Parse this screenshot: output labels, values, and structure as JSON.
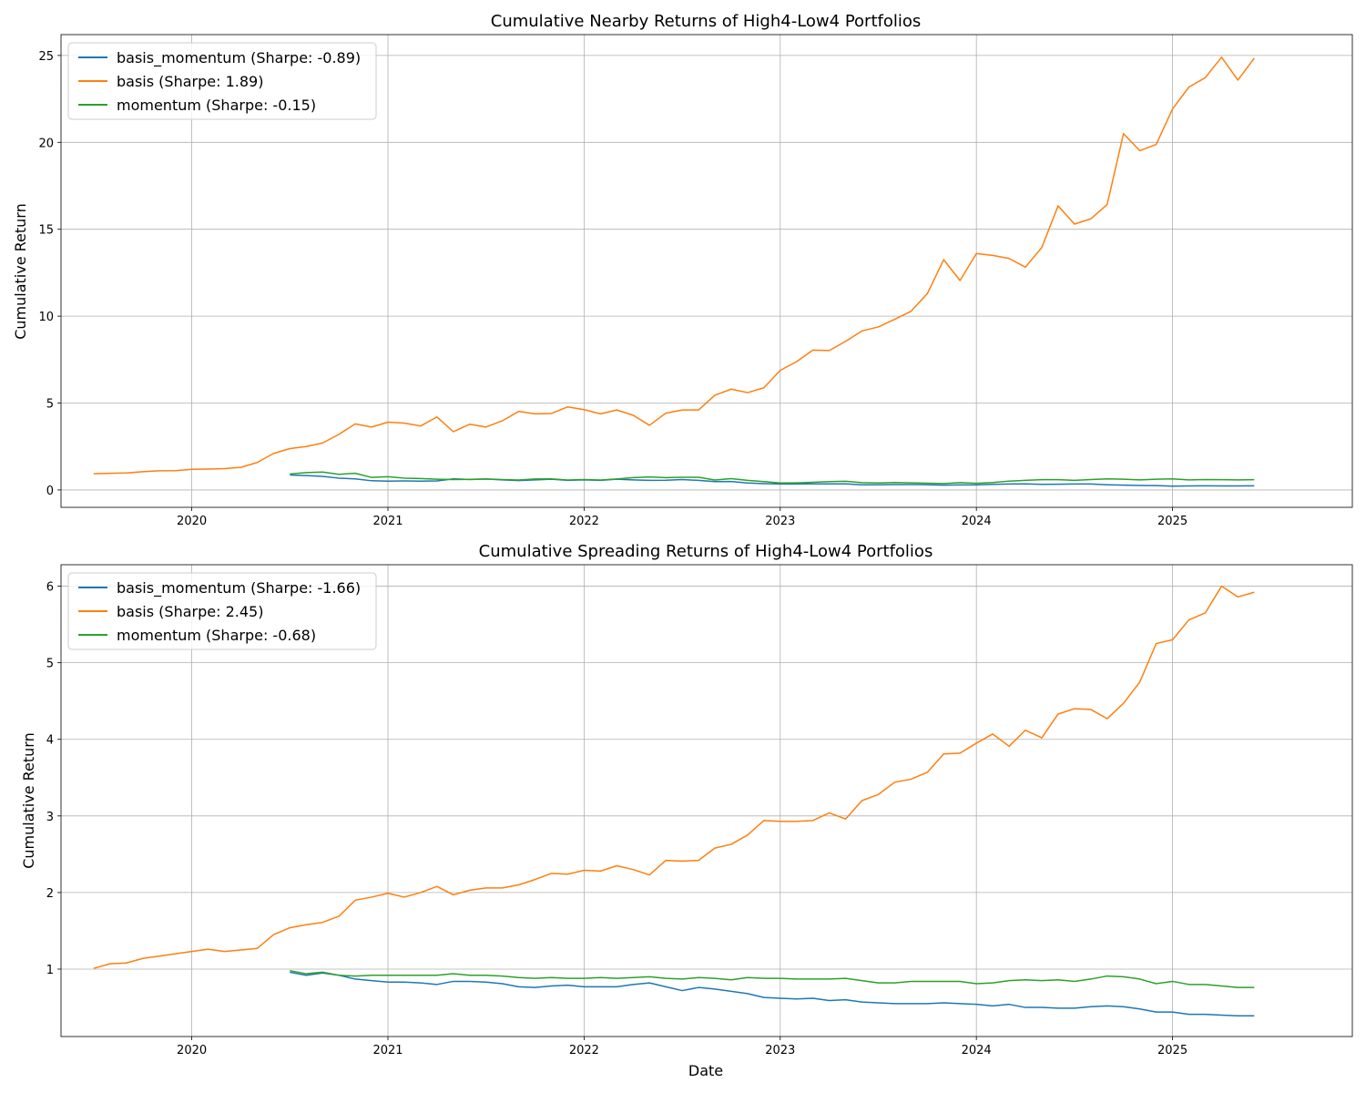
{
  "chart_data": [
    {
      "type": "line",
      "title": "Cumulative Nearby Returns of High4-Low4 Portfolios",
      "xlabel": "",
      "ylabel": "Cumulative Return",
      "xlim": [
        "2019-05",
        "2025-12"
      ],
      "ylim": [
        -1,
        26.2
      ],
      "xticks": [
        "2020",
        "2021",
        "2022",
        "2023",
        "2024",
        "2025"
      ],
      "yticks": [
        0,
        5,
        10,
        15,
        20,
        25
      ],
      "grid": true,
      "legend_position": "upper left",
      "series": [
        {
          "name": "basis_momentum (Sharpe: -0.89)",
          "color": "#1f77b4",
          "start": "2020-07",
          "values": [
            0.86,
            0.83,
            0.78,
            0.68,
            0.64,
            0.53,
            0.51,
            0.52,
            0.51,
            0.52,
            0.64,
            0.6,
            0.63,
            0.58,
            0.54,
            0.58,
            0.62,
            0.55,
            0.58,
            0.55,
            0.62,
            0.58,
            0.55,
            0.56,
            0.6,
            0.55,
            0.48,
            0.49,
            0.4,
            0.36,
            0.34,
            0.34,
            0.35,
            0.35,
            0.35,
            0.3,
            0.3,
            0.31,
            0.31,
            0.3,
            0.28,
            0.29,
            0.29,
            0.32,
            0.34,
            0.35,
            0.32,
            0.33,
            0.34,
            0.34,
            0.3,
            0.28,
            0.26,
            0.25,
            0.22,
            0.23,
            0.24,
            0.23,
            0.23,
            0.24
          ]
        },
        {
          "name": "basis (Sharpe: 1.89)",
          "color": "#ff7f0e",
          "start": "2019-07",
          "values": [
            0.93,
            0.96,
            0.98,
            1.05,
            1.1,
            1.11,
            1.19,
            1.2,
            1.23,
            1.3,
            1.58,
            2.1,
            2.38,
            2.5,
            2.7,
            3.2,
            3.8,
            3.62,
            3.9,
            3.85,
            3.68,
            4.2,
            3.35,
            3.78,
            3.62,
            3.98,
            4.52,
            4.38,
            4.4,
            4.78,
            4.62,
            4.38,
            4.6,
            4.3,
            3.72,
            4.42,
            4.6,
            4.6,
            5.45,
            5.8,
            5.6,
            5.88,
            6.88,
            7.38,
            8.05,
            8.02,
            8.55,
            9.15,
            9.38,
            9.82,
            10.28,
            11.3,
            13.25,
            12.05,
            13.6,
            13.5,
            13.32,
            12.82,
            13.95,
            16.35,
            15.3,
            15.6,
            16.42,
            20.5,
            19.52,
            19.88,
            21.92,
            23.18,
            23.72,
            24.9,
            23.58,
            24.85
          ]
        },
        {
          "name": "momentum (Sharpe: -0.15)",
          "color": "#2ca02c",
          "start": "2020-07",
          "values": [
            0.92,
            1.0,
            1.03,
            0.9,
            0.96,
            0.72,
            0.76,
            0.68,
            0.66,
            0.62,
            0.6,
            0.61,
            0.63,
            0.6,
            0.57,
            0.63,
            0.64,
            0.57,
            0.6,
            0.57,
            0.63,
            0.71,
            0.75,
            0.71,
            0.73,
            0.73,
            0.57,
            0.65,
            0.55,
            0.48,
            0.4,
            0.41,
            0.44,
            0.48,
            0.5,
            0.42,
            0.4,
            0.43,
            0.41,
            0.39,
            0.37,
            0.42,
            0.38,
            0.43,
            0.51,
            0.55,
            0.59,
            0.59,
            0.55,
            0.6,
            0.64,
            0.62,
            0.58,
            0.62,
            0.64,
            0.58,
            0.6,
            0.59,
            0.58,
            0.59
          ]
        }
      ]
    },
    {
      "type": "line",
      "title": "Cumulative Spreading Returns of High4-Low4 Portfolios",
      "xlabel": "Date",
      "ylabel": "Cumulative Return",
      "xlim": [
        "2019-05",
        "2025-12"
      ],
      "ylim": [
        0.12,
        6.28
      ],
      "xticks": [
        "2020",
        "2021",
        "2022",
        "2023",
        "2024",
        "2025"
      ],
      "yticks": [
        1,
        2,
        3,
        4,
        5,
        6
      ],
      "grid": true,
      "legend_position": "upper left",
      "series": [
        {
          "name": "basis_momentum (Sharpe: -1.66)",
          "color": "#1f77b4",
          "start": "2020-07",
          "values": [
            0.96,
            0.92,
            0.95,
            0.92,
            0.87,
            0.85,
            0.83,
            0.83,
            0.82,
            0.8,
            0.84,
            0.84,
            0.83,
            0.81,
            0.77,
            0.76,
            0.78,
            0.79,
            0.77,
            0.77,
            0.77,
            0.8,
            0.82,
            0.77,
            0.72,
            0.76,
            0.74,
            0.71,
            0.68,
            0.63,
            0.62,
            0.61,
            0.62,
            0.59,
            0.6,
            0.57,
            0.56,
            0.55,
            0.55,
            0.55,
            0.56,
            0.55,
            0.54,
            0.52,
            0.54,
            0.5,
            0.5,
            0.49,
            0.49,
            0.51,
            0.52,
            0.51,
            0.48,
            0.44,
            0.44,
            0.41,
            0.41,
            0.4,
            0.39,
            0.39
          ]
        },
        {
          "name": "basis (Sharpe: 2.45)",
          "color": "#ff7f0e",
          "start": "2019-07",
          "values": [
            1.01,
            1.07,
            1.08,
            1.14,
            1.17,
            1.2,
            1.23,
            1.26,
            1.23,
            1.25,
            1.27,
            1.45,
            1.54,
            1.58,
            1.61,
            1.69,
            1.9,
            1.94,
            1.99,
            1.94,
            2.0,
            2.08,
            1.97,
            2.03,
            2.06,
            2.06,
            2.1,
            2.17,
            2.25,
            2.24,
            2.29,
            2.28,
            2.35,
            2.3,
            2.23,
            2.42,
            2.41,
            2.42,
            2.58,
            2.63,
            2.75,
            2.94,
            2.93,
            2.93,
            2.94,
            3.04,
            2.96,
            3.2,
            3.28,
            3.44,
            3.48,
            3.57,
            3.81,
            3.82,
            3.95,
            4.07,
            3.91,
            4.12,
            4.02,
            4.33,
            4.4,
            4.39,
            4.27,
            4.47,
            4.75,
            5.25,
            5.3,
            5.56,
            5.65,
            6.0,
            5.86,
            5.92
          ]
        },
        {
          "name": "momentum (Sharpe: -0.68)",
          "color": "#2ca02c",
          "start": "2020-07",
          "values": [
            0.98,
            0.94,
            0.96,
            0.92,
            0.91,
            0.92,
            0.92,
            0.92,
            0.92,
            0.92,
            0.94,
            0.92,
            0.92,
            0.91,
            0.89,
            0.88,
            0.89,
            0.88,
            0.88,
            0.89,
            0.88,
            0.89,
            0.9,
            0.88,
            0.87,
            0.89,
            0.88,
            0.86,
            0.89,
            0.88,
            0.88,
            0.87,
            0.87,
            0.87,
            0.88,
            0.85,
            0.82,
            0.82,
            0.84,
            0.84,
            0.84,
            0.84,
            0.81,
            0.82,
            0.85,
            0.86,
            0.85,
            0.86,
            0.84,
            0.87,
            0.91,
            0.9,
            0.87,
            0.81,
            0.84,
            0.8,
            0.8,
            0.78,
            0.76,
            0.76
          ]
        }
      ]
    }
  ]
}
